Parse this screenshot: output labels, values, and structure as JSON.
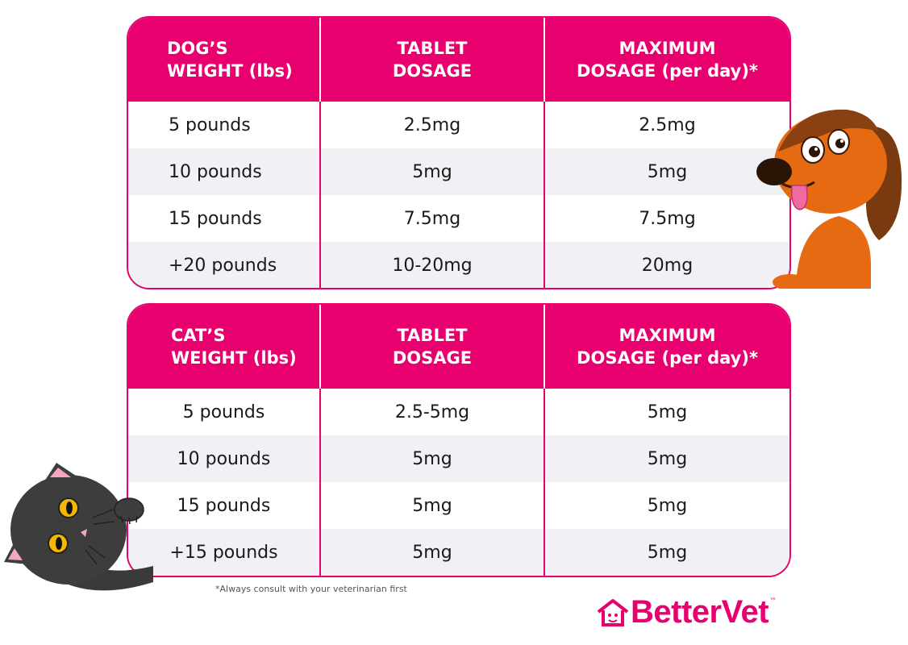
{
  "dog_table": {
    "headers": [
      [
        "DOG’S",
        "WEIGHT (lbs)"
      ],
      [
        "TABLET",
        "DOSAGE"
      ],
      [
        "MAXIMUM",
        "DOSAGE (per day)*"
      ]
    ],
    "rows": [
      [
        "5 pounds",
        "2.5mg",
        "2.5mg"
      ],
      [
        "10 pounds",
        "5mg",
        "5mg"
      ],
      [
        "15 pounds",
        "7.5mg",
        "7.5mg"
      ],
      [
        "+20 pounds",
        "10-20mg",
        "20mg"
      ]
    ]
  },
  "cat_table": {
    "headers": [
      [
        "CAT’S",
        "WEIGHT (lbs)"
      ],
      [
        "TABLET",
        "DOSAGE"
      ],
      [
        "MAXIMUM",
        "DOSAGE (per day)*"
      ]
    ],
    "rows": [
      [
        "5 pounds",
        "2.5-5mg",
        "5mg"
      ],
      [
        "10 pounds",
        "5mg",
        "5mg"
      ],
      [
        "15 pounds",
        "5mg",
        "5mg"
      ],
      [
        "+15 pounds",
        "5mg",
        "5mg"
      ]
    ]
  },
  "footnote": "*Always consult with your veterinarian first",
  "brand": {
    "name": "BetterVet",
    "tm": "™"
  },
  "colors": {
    "accent": "#e8006f",
    "row_alt": "#f1f1f5"
  },
  "illustrations": [
    "dog-illustration",
    "cat-illustration"
  ]
}
